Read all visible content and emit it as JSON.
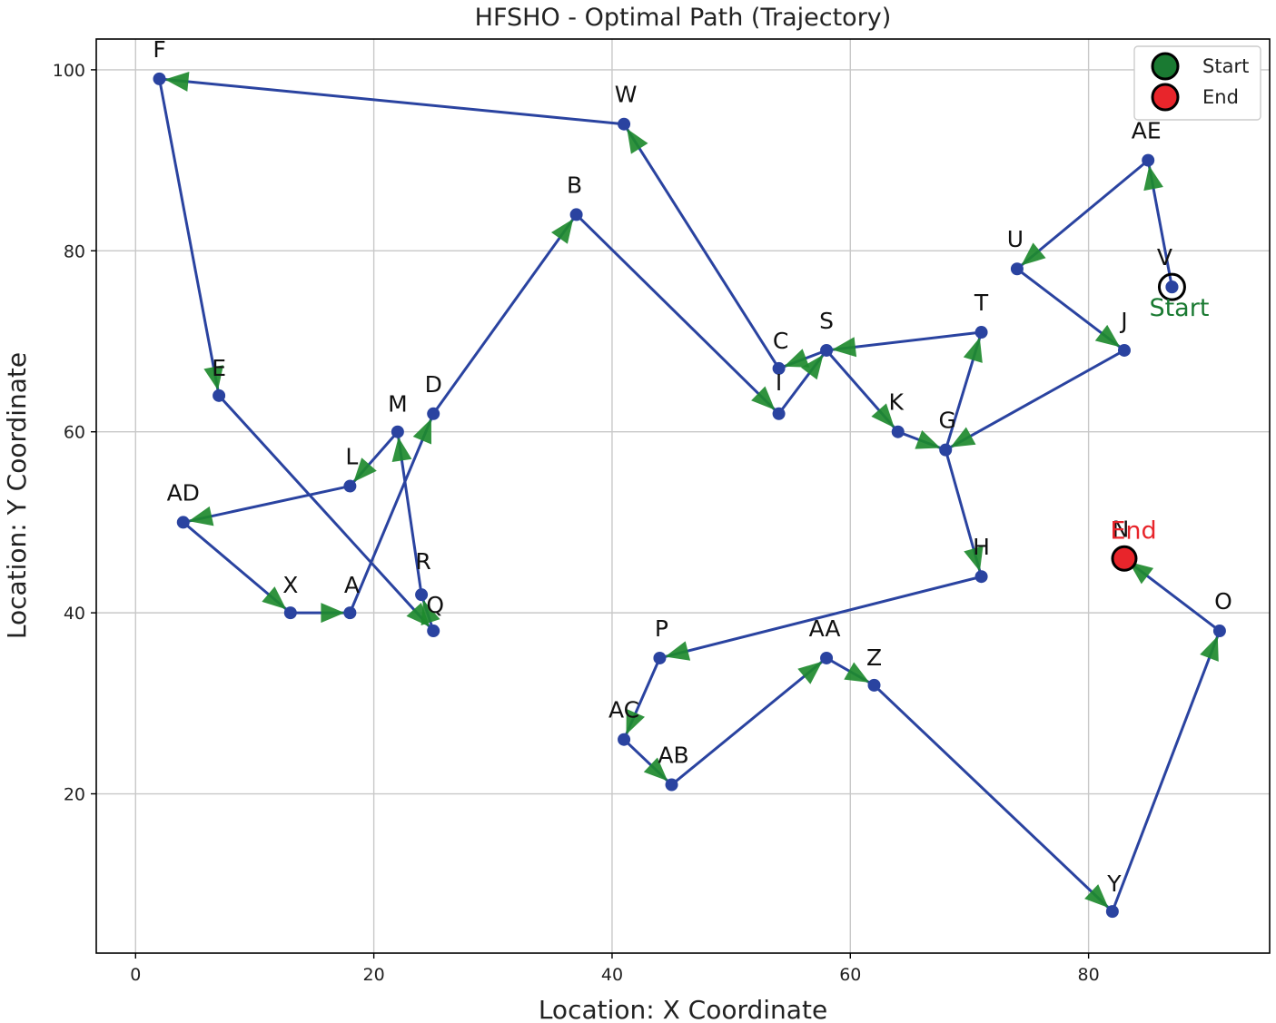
{
  "chart_data": {
    "type": "line",
    "title": "HFSHO - Optimal Path (Trajectory)",
    "xlabel": "Location: X Coordinate",
    "ylabel": "Location: Y Coordinate",
    "xlim": [
      -3.3,
      95.2
    ],
    "ylim": [
      2.4,
      103.4
    ],
    "xticks": [
      0,
      20,
      40,
      60,
      80
    ],
    "yticks": [
      20,
      40,
      60,
      80,
      100
    ],
    "grid": true,
    "legend_position": "top-right",
    "legend": [
      {
        "label": "Start",
        "color": "#1a7a32"
      },
      {
        "label": "End",
        "color": "#e8252b"
      }
    ],
    "start": {
      "x": 87,
      "y": 76,
      "label": "Start",
      "color": "#1a7a32"
    },
    "end": {
      "x": 83,
      "y": 46,
      "label": "End",
      "color": "#e8252b"
    },
    "path_color": "#2a43a0",
    "arrow_color": "#1e8a2e",
    "points": [
      {
        "name": "V",
        "x": 87,
        "y": 76
      },
      {
        "name": "AE",
        "x": 85,
        "y": 90
      },
      {
        "name": "U",
        "x": 74,
        "y": 78
      },
      {
        "name": "J",
        "x": 83,
        "y": 69
      },
      {
        "name": "K",
        "x": 64,
        "y": 60
      },
      {
        "name": "S",
        "x": 58,
        "y": 69
      },
      {
        "name": "T",
        "x": 71,
        "y": 71
      },
      {
        "name": "G",
        "x": 68,
        "y": 58
      },
      {
        "name": "H",
        "x": 71,
        "y": 44
      },
      {
        "name": "P",
        "x": 44,
        "y": 35
      },
      {
        "name": "AC",
        "x": 41,
        "y": 26
      },
      {
        "name": "AB",
        "x": 45,
        "y": 21
      },
      {
        "name": "AA",
        "x": 58,
        "y": 35
      },
      {
        "name": "Z",
        "x": 62,
        "y": 32
      },
      {
        "name": "Y",
        "x": 82,
        "y": 7
      },
      {
        "name": "O",
        "x": 91,
        "y": 38
      },
      {
        "name": "N",
        "x": 83,
        "y": 46
      }
    ],
    "points2": [
      {
        "name": "I",
        "x": 54,
        "y": 62
      },
      {
        "name": "C",
        "x": 54,
        "y": 67
      },
      {
        "name": "W",
        "x": 41,
        "y": 94
      },
      {
        "name": "F",
        "x": 2,
        "y": 99
      },
      {
        "name": "E",
        "x": 7,
        "y": 64
      },
      {
        "name": "Q",
        "x": 25,
        "y": 38
      },
      {
        "name": "R",
        "x": 24,
        "y": 42
      },
      {
        "name": "M",
        "x": 22,
        "y": 60
      },
      {
        "name": "L",
        "x": 18,
        "y": 54
      },
      {
        "name": "AD",
        "x": 4,
        "y": 50
      },
      {
        "name": "X",
        "x": 13,
        "y": 40
      },
      {
        "name": "A",
        "x": 18,
        "y": 40
      },
      {
        "name": "D",
        "x": 25,
        "y": 62
      },
      {
        "name": "B",
        "x": 37,
        "y": 84
      }
    ]
  }
}
